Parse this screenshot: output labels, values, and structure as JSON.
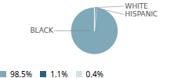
{
  "chart_data": {
    "type": "pie",
    "categories": [
      "BLACK",
      "WHITE",
      "HISPANIC"
    ],
    "values": [
      98.5,
      1.1,
      0.4
    ],
    "value_labels": [
      "98.5%",
      "1.1%",
      "0.4%"
    ],
    "colors": [
      "#7fa8b8",
      "#2d5f7a",
      "#d4dfe6"
    ],
    "legend": "bottom"
  }
}
